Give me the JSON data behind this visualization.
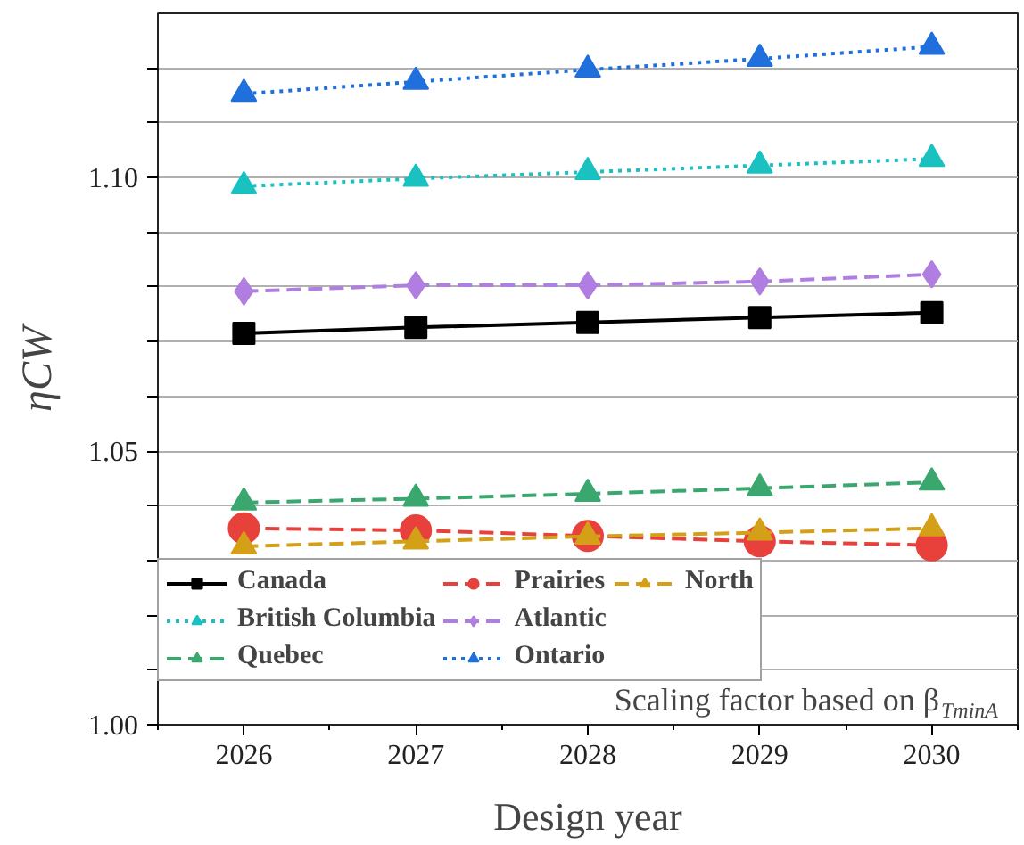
{
  "chart_data": {
    "type": "line",
    "x": [
      2026,
      2027,
      2028,
      2029,
      2030
    ],
    "xlabel": "Design year",
    "ylabel": "ηCW",
    "xlim": [
      2025.5,
      2030.5
    ],
    "xticks": [
      2026,
      2027,
      2028,
      2029,
      2030
    ],
    "ylim": [
      1.0,
      1.13
    ],
    "yticks": [
      {
        "value": 1.0,
        "label": "1.00"
      },
      {
        "value": 1.01,
        "label": null
      },
      {
        "value": 1.02,
        "label": null
      },
      {
        "value": 1.03,
        "label": null
      },
      {
        "value": 1.04,
        "label": null
      },
      {
        "value": 1.05,
        "label": "1.05"
      },
      {
        "value": 1.06,
        "label": null
      },
      {
        "value": 1.07,
        "label": null
      },
      {
        "value": 1.08,
        "label": null
      },
      {
        "value": 1.09,
        "label": null
      },
      {
        "value": 1.1,
        "label": "1.10"
      },
      {
        "value": 1.11,
        "label": null
      },
      {
        "value": 1.12,
        "label": null
      }
    ],
    "grid": "y",
    "legend": "bottom left",
    "annotations": [
      "Scaling factor based on β$_{TminA}$"
    ],
    "series": [
      {
        "name": "Canada",
        "color": "#000000",
        "marker": "square",
        "line_style": "solid",
        "values": [
          1.0715,
          1.0726,
          1.0735,
          1.0744,
          1.0753
        ]
      },
      {
        "name": "British Columbia",
        "color": "#19c1c1",
        "marker": "triangle",
        "line_style": "dotted",
        "values": [
          1.0984,
          1.0998,
          1.101,
          1.1022,
          1.1034
        ]
      },
      {
        "name": "Quebec",
        "color": "#3aa86e",
        "marker": "triangle",
        "line_style": "dashed",
        "values": [
          1.0406,
          1.0413,
          1.0422,
          1.0432,
          1.0443
        ]
      },
      {
        "name": "Prairies",
        "color": "#e8413c",
        "marker": "circle",
        "line_style": "dashed",
        "values": [
          1.0359,
          1.0355,
          1.0345,
          1.0335,
          1.0328
        ]
      },
      {
        "name": "Atlantic",
        "color": "#b07ee0",
        "marker": "diamond",
        "line_style": "dashed",
        "values": [
          1.0792,
          1.0803,
          1.0803,
          1.081,
          1.0823
        ]
      },
      {
        "name": "Ontario",
        "color": "#1f6fdc",
        "marker": "triangle",
        "line_style": "dotted",
        "values": [
          1.1153,
          1.1175,
          1.1197,
          1.1217,
          1.1239
        ]
      },
      {
        "name": "North",
        "color": "#d4a017",
        "marker": "triangle",
        "line_style": "dashed",
        "values": [
          1.0326,
          1.0335,
          1.0344,
          1.0351,
          1.0359
        ]
      }
    ]
  }
}
